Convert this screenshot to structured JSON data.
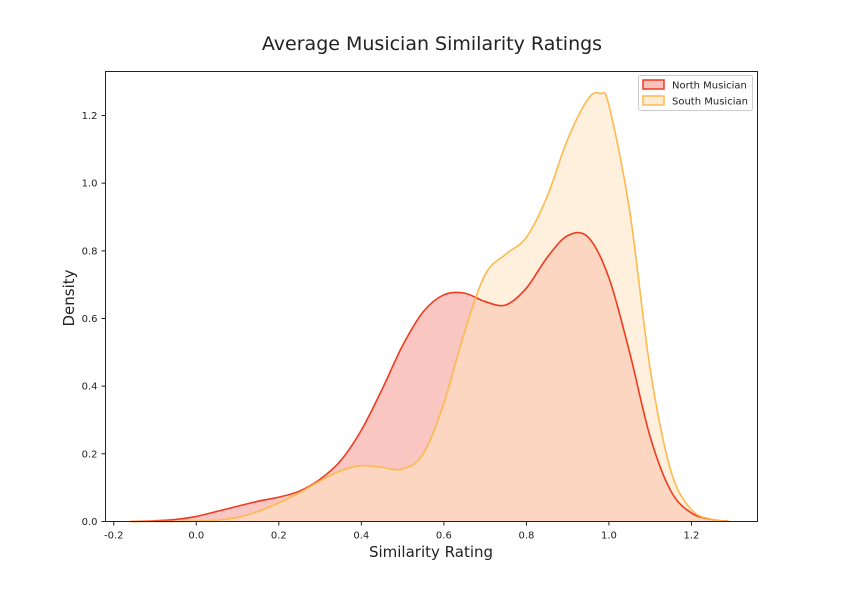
{
  "chart_data": {
    "type": "area",
    "title": "Average Musician Similarity Ratings",
    "xlabel": "Similarity Rating",
    "ylabel": "Density",
    "xlim": [
      -0.22,
      1.36
    ],
    "ylim": [
      0.0,
      1.33
    ],
    "xticks": [
      "-0.2",
      "0.0",
      "0.2",
      "0.4",
      "0.6",
      "0.8",
      "1.0",
      "1.2"
    ],
    "yticks": [
      "0.0",
      "0.2",
      "0.4",
      "0.6",
      "0.8",
      "1.0",
      "1.2"
    ],
    "grid": false,
    "legend_position": "upper right",
    "series": [
      {
        "name": "North Musician",
        "color": "#f03b20",
        "fill": "#f7a8a0",
        "x": [
          -0.16,
          -0.1,
          -0.05,
          0.0,
          0.05,
          0.1,
          0.15,
          0.2,
          0.25,
          0.3,
          0.35,
          0.4,
          0.45,
          0.5,
          0.55,
          0.6,
          0.65,
          0.7,
          0.75,
          0.8,
          0.85,
          0.9,
          0.95,
          1.0,
          1.05,
          1.1,
          1.15,
          1.2,
          1.25,
          1.29
        ],
        "y": [
          0.0,
          0.002,
          0.006,
          0.015,
          0.03,
          0.045,
          0.06,
          0.072,
          0.09,
          0.125,
          0.18,
          0.27,
          0.39,
          0.52,
          0.62,
          0.67,
          0.675,
          0.65,
          0.64,
          0.69,
          0.78,
          0.845,
          0.84,
          0.72,
          0.5,
          0.25,
          0.09,
          0.025,
          0.006,
          0.001
        ]
      },
      {
        "name": "South Musician",
        "color": "#fdb94e",
        "fill": "#fde3c0",
        "x": [
          -0.16,
          -0.1,
          -0.05,
          0.0,
          0.05,
          0.1,
          0.15,
          0.2,
          0.25,
          0.3,
          0.35,
          0.4,
          0.45,
          0.5,
          0.55,
          0.6,
          0.65,
          0.7,
          0.75,
          0.8,
          0.85,
          0.9,
          0.95,
          0.98,
          1.0,
          1.05,
          1.1,
          1.15,
          1.2,
          1.25,
          1.29
        ],
        "y": [
          0.0,
          0.0,
          0.0,
          0.001,
          0.004,
          0.012,
          0.03,
          0.055,
          0.085,
          0.12,
          0.15,
          0.165,
          0.16,
          0.155,
          0.2,
          0.35,
          0.56,
          0.73,
          0.79,
          0.84,
          0.96,
          1.13,
          1.25,
          1.265,
          1.23,
          0.92,
          0.45,
          0.15,
          0.035,
          0.006,
          0.001
        ]
      }
    ]
  }
}
